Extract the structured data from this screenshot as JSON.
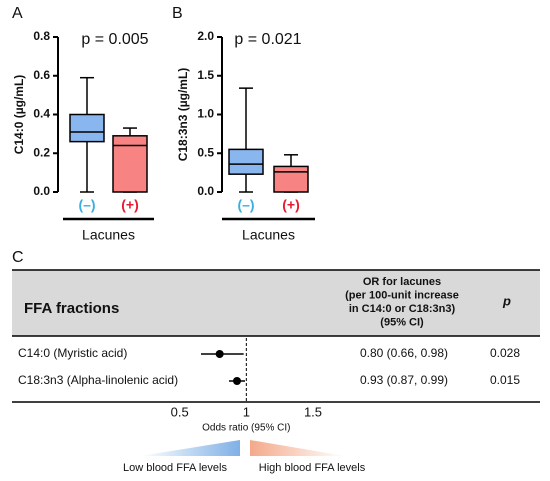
{
  "chart_data": [
    {
      "type": "box",
      "panel": "A",
      "title": "p = 0.005",
      "y_label": "C14:0 (µg/mL)",
      "x_label": "Lacunes",
      "categories": [
        "(–)",
        "(+)"
      ],
      "ylim": [
        0,
        0.8
      ],
      "yticks": [
        {
          "value": 0,
          "label": "0.0"
        },
        {
          "value": 0.2,
          "label": "0.2"
        },
        {
          "value": 0.4,
          "label": "0.4"
        },
        {
          "value": 0.6,
          "label": "0.6"
        },
        {
          "value": 0.8,
          "label": "0.8"
        }
      ],
      "series": [
        {
          "color": "#8ab6f0",
          "label_color": "#3aaee0",
          "min": 0,
          "q1": 0.26,
          "median": 0.31,
          "q3": 0.4,
          "max": 0.59
        },
        {
          "color": "#f78383",
          "label_color": "#e8192c",
          "min": 0,
          "q1": 0,
          "median": 0.24,
          "q3": 0.29,
          "max": 0.33
        }
      ]
    },
    {
      "type": "box",
      "panel": "B",
      "title": "p = 0.021",
      "y_label": "C18:3n3 (µg/mL)",
      "x_label": "Lacunes",
      "categories": [
        "(–)",
        "(+)"
      ],
      "ylim": [
        0,
        2
      ],
      "yticks": [
        {
          "value": 0,
          "label": "0.0"
        },
        0.5,
        {
          "value": 1,
          "label": "1.0"
        },
        1.5,
        {
          "value": 2,
          "label": "2.0"
        }
      ],
      "series": [
        {
          "color": "#8ab6f0",
          "label_color": "#3aaee0",
          "min": 0,
          "q1": 0.23,
          "median": 0.36,
          "q3": 0.55,
          "max": 1.34
        },
        {
          "color": "#f78383",
          "label_color": "#e8192c",
          "min": 0,
          "q1": 0,
          "median": 0.26,
          "q3": 0.33,
          "max": 0.48
        }
      ]
    },
    {
      "type": "forest",
      "panel": "C",
      "column_title": "FFA fractions",
      "or_header": [
        "OR for lacunes",
        "(per 100-unit increase",
        "in C14:0 or C18:3n3)",
        "(95% CI)"
      ],
      "p_header": "p",
      "rows": [
        {
          "label": "C14:0 (Myristic acid)",
          "or": 0.8,
          "ci_low": 0.66,
          "ci_high": 0.98,
          "or_label": "0.80 (0.66, 0.98)",
          "p": 0.028
        },
        {
          "label": "C18:3n3 (Alpha-linolenic acid)",
          "or": 0.93,
          "ci_low": 0.87,
          "ci_high": 0.99,
          "or_label": "0.93 (0.87, 0.99)",
          "p": 0.015
        }
      ],
      "xlim": [
        0.3,
        1.8
      ],
      "xticks": [
        0.5,
        1,
        1.5
      ],
      "reference": 1,
      "x_label": "Odds ratio (95% CI)",
      "low_label": "Low blood FFA levels",
      "high_label": "High blood FFA levels"
    }
  ]
}
